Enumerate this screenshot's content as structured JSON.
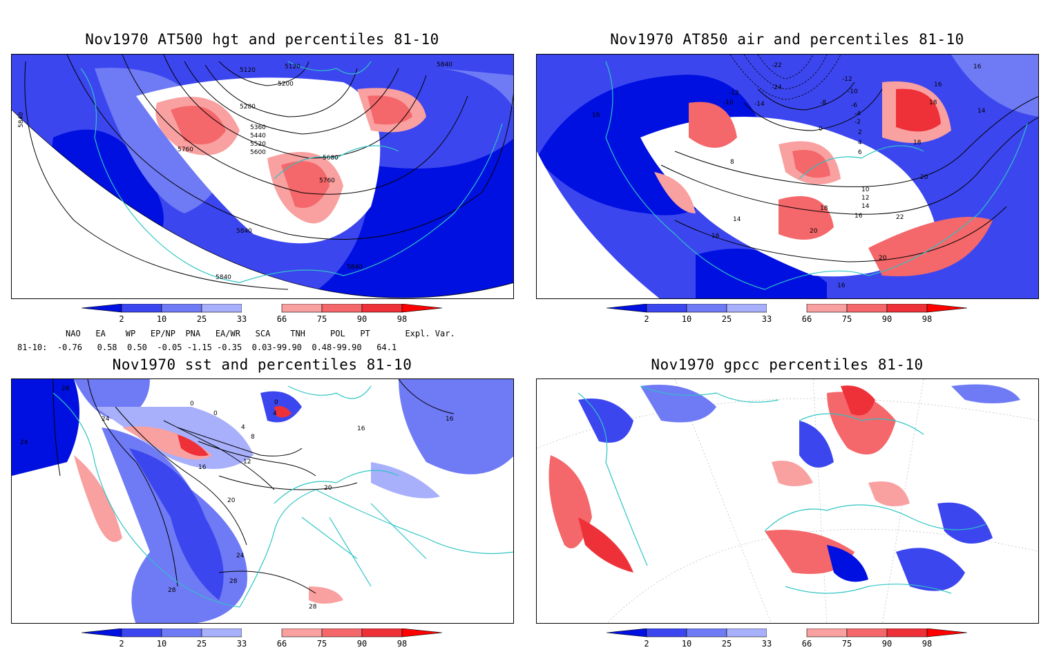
{
  "panels": [
    {
      "title": "Nov1970 AT500 hgt and percentiles 81-10"
    },
    {
      "title": "Nov1970 AT850 air and percentiles 81-10"
    },
    {
      "title": "Nov1970 sst and percentiles 81-10"
    },
    {
      "title": "Nov1970 gpcc percentiles 81-10"
    }
  ],
  "colorbar": {
    "labels": [
      "2",
      "10",
      "25",
      "33",
      "66",
      "75",
      "90",
      "98"
    ],
    "colors": [
      "#0010e0",
      "#3c46ef",
      "#6f7af5",
      "#a8b0fb",
      "#ffffff",
      "#f9a0a0",
      "#f4676a",
      "#ee3138",
      "#ff0000"
    ]
  },
  "contour_labels": {
    "hgt": [
      "5120",
      "5120",
      "5200",
      "5280",
      "5360",
      "5440",
      "5520",
      "5600",
      "5680",
      "5760",
      "5760",
      "5840",
      "5840",
      "5840",
      "5840",
      "5840"
    ],
    "air": [
      "-22",
      "-24",
      "-12",
      "-10",
      "-14",
      "-12",
      "-10",
      "-8",
      "-6",
      "-4",
      "-2",
      "0",
      "2",
      "4",
      "6",
      "8",
      "10",
      "12",
      "14",
      "16",
      "16",
      "16",
      "16",
      "16",
      "18",
      "18",
      "18",
      "20",
      "20",
      "20",
      "22",
      "14",
      "14",
      "16"
    ],
    "sst": [
      "28",
      "24",
      "24",
      "0",
      "0",
      "0",
      "4",
      "4",
      "8",
      "12",
      "16",
      "20",
      "20",
      "24",
      "28",
      "28",
      "28",
      "16",
      "16"
    ]
  },
  "indices": {
    "headers": [
      "NAO",
      "EA",
      "WP",
      "EP/NP",
      "PNA",
      "EA/WR",
      "SCA",
      "TNH",
      "POL",
      "PT",
      "Expl. Var."
    ],
    "row_label": "81-10:",
    "values": [
      "-0.76",
      "0.58",
      "0.50",
      "-0.05",
      "-1.15",
      "-0.35",
      "0.03-99.90",
      "0.48-99.90",
      "64.1"
    ]
  }
}
